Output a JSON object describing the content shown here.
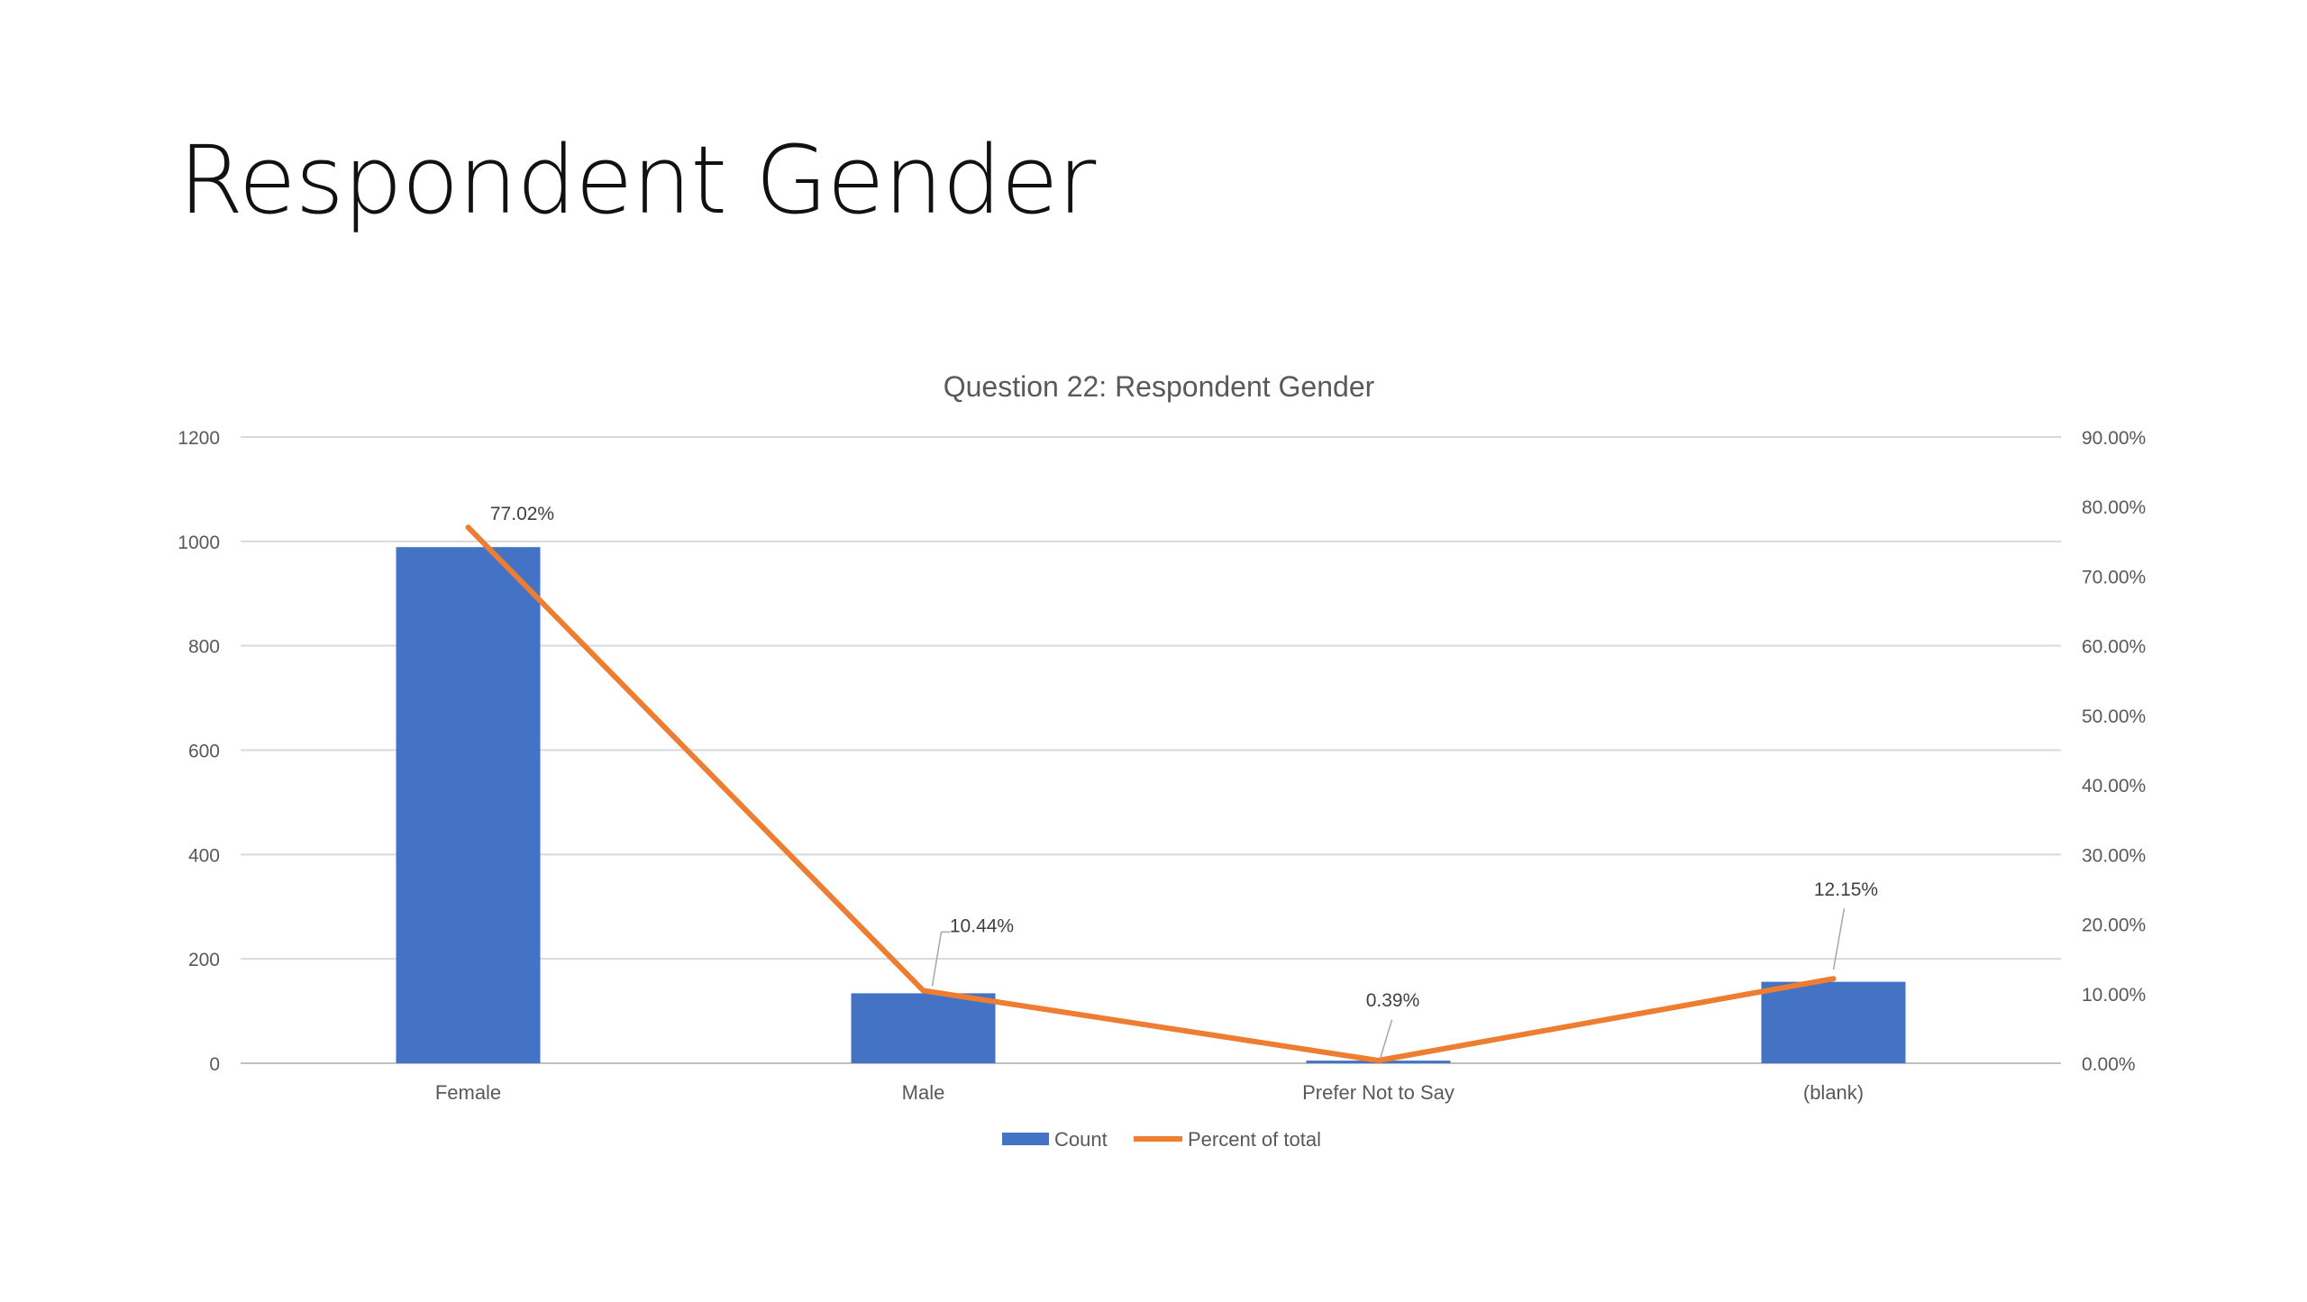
{
  "slide": {
    "title": "Respondent Gender"
  },
  "chart_data": {
    "type": "bar",
    "title": "Question 22: Respondent Gender",
    "categories": [
      "Female",
      "Male",
      "Prefer Not to Say",
      "(blank)"
    ],
    "series": [
      {
        "name": "Count",
        "kind": "bar",
        "axis": "left",
        "color": "#4472C4",
        "values": [
          989,
          134,
          5,
          156
        ]
      },
      {
        "name": "Percent of total",
        "kind": "line",
        "axis": "right",
        "color": "#ED7D31",
        "values": [
          77.02,
          10.44,
          0.39,
          12.15
        ],
        "data_labels": [
          "77.02%",
          "10.44%",
          "0.39%",
          "12.15%"
        ]
      }
    ],
    "left_axis": {
      "ylim": [
        0,
        1200
      ],
      "ticks": [
        "0",
        "200",
        "400",
        "600",
        "800",
        "1000",
        "1200"
      ]
    },
    "right_axis": {
      "ylim": [
        0,
        90
      ],
      "ticks": [
        "0.00%",
        "10.00%",
        "20.00%",
        "30.00%",
        "40.00%",
        "50.00%",
        "60.00%",
        "70.00%",
        "80.00%",
        "90.00%"
      ]
    },
    "grid": true,
    "legend": "bottom"
  }
}
